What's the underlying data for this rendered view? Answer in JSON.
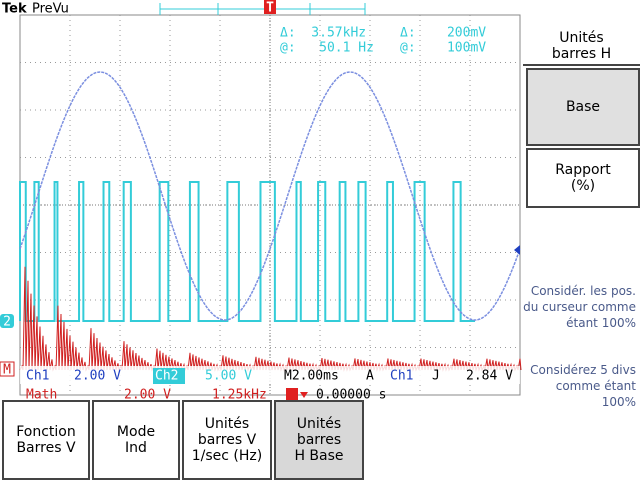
{
  "header": {
    "brand": "Tek",
    "mode": "PreVu",
    "trigger_marker": "T"
  },
  "cursor_readout": {
    "delta_h": "Δ:  3.57kHz",
    "delta_v": "Δ:    200mV",
    "at_h": "@:   50.1 Hz",
    "at_v": "@:    100mV"
  },
  "markers": {
    "ch2": "2",
    "math": "M"
  },
  "status": {
    "ch1": "Ch1",
    "ch1_scale": "2.00 V",
    "ch2": "Ch2",
    "ch2_scale": "5.00 V",
    "timebase": "M2.00ms",
    "acq": "A",
    "trig_source": "Ch1",
    "trig_slope": "J",
    "trig_level": "2.84 V",
    "math": "Math",
    "math_scale": "2.00 V",
    "math_freq": "1.25kHz",
    "trig_pos": "0.00000 s"
  },
  "side_menu": {
    "title": "Unités barres H",
    "items": [
      "Base",
      "Rapport (%)"
    ],
    "notes": [
      "Considér. les pos. du curseur comme étant 100%",
      "Considérez 5 divs comme étant 100%"
    ]
  },
  "bottom_menu": [
    "Fonction Barres V",
    "Mode Ind",
    "Unités barres V 1/sec (Hz)",
    "Unités barres H Base"
  ]
}
